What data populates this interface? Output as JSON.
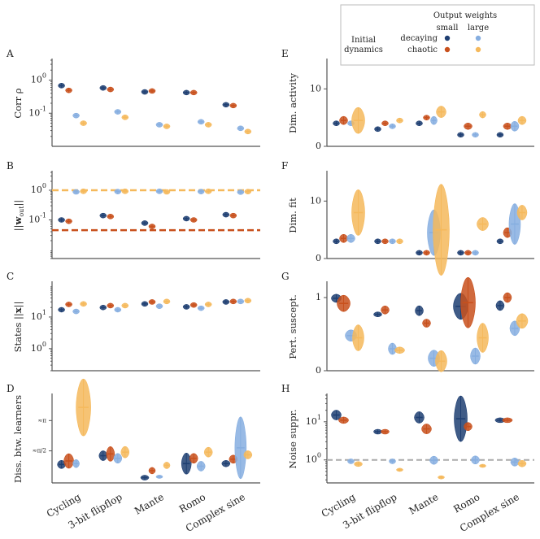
{
  "legend": {
    "title": "Output weights",
    "col_small": "small",
    "col_large": "large",
    "row_header_line1": "Initial",
    "row_header_line2": "dynamics",
    "row_decaying": "decaying",
    "row_chaotic": "chaotic"
  },
  "colors": {
    "decaying_small": "#1f3f72",
    "chaotic_small": "#c8501c",
    "decaying_large": "#86aee0",
    "chaotic_large": "#f5b95c",
    "gray_dashed": "#aaaaaa"
  },
  "chart_data": [
    {
      "type": "violin",
      "panel": "A",
      "title": "",
      "ylabel": "Corr ρ",
      "yscale": "log",
      "ylim": [
        0.01,
        4
      ],
      "yticks": [
        0.1,
        1
      ],
      "yticklabels": [
        "10^{-1}",
        "10^{0}"
      ],
      "categories": [
        "Cycling",
        "3-bit flipflop",
        "Mante",
        "Romo",
        "Complex sine"
      ],
      "series": [
        {
          "name": "decaying small",
          "values": [
            0.68,
            0.58,
            0.44,
            0.42,
            0.18
          ]
        },
        {
          "name": "chaotic small",
          "values": [
            0.49,
            0.52,
            0.47,
            0.42,
            0.17
          ]
        },
        {
          "name": "decaying large",
          "values": [
            0.085,
            0.11,
            0.045,
            0.055,
            0.035
          ]
        },
        {
          "name": "chaotic large",
          "values": [
            0.05,
            0.075,
            0.04,
            0.045,
            0.028
          ]
        }
      ]
    },
    {
      "type": "violin",
      "panel": "B",
      "ylabel": "||w_out||",
      "yscale": "log",
      "ylim": [
        0.005,
        4
      ],
      "yticks": [
        0.1,
        1
      ],
      "yticklabels": [
        "10^{-1}",
        "10^{0}"
      ],
      "reference_lines": [
        {
          "name": "large init norm",
          "value": 1.0,
          "color": "chaotic_large"
        },
        {
          "name": "small init norm",
          "value": 0.045,
          "color": "chaotic_small"
        }
      ],
      "categories": [
        "Cycling",
        "3-bit flipflop",
        "Mante",
        "Romo",
        "Complex sine"
      ],
      "series": [
        {
          "name": "decaying small",
          "values": [
            0.1,
            0.14,
            0.078,
            0.11,
            0.15
          ]
        },
        {
          "name": "chaotic small",
          "values": [
            0.09,
            0.13,
            0.06,
            0.1,
            0.14
          ]
        },
        {
          "name": "decaying large",
          "values": [
            0.88,
            0.9,
            0.92,
            0.9,
            0.86
          ]
        },
        {
          "name": "chaotic large",
          "values": [
            0.92,
            0.92,
            0.88,
            0.92,
            0.9
          ]
        }
      ]
    },
    {
      "type": "violin",
      "panel": "C",
      "ylabel": "States ||x||",
      "yscale": "log",
      "ylim": [
        0.2,
        120
      ],
      "yticks": [
        1,
        10
      ],
      "yticklabels": [
        "10^{0}",
        "10^{1}"
      ],
      "categories": [
        "Cycling",
        "3-bit flipflop",
        "Mante",
        "Romo",
        "Complex sine"
      ],
      "series": [
        {
          "name": "decaying small",
          "values": [
            17,
            20,
            26,
            21,
            30
          ]
        },
        {
          "name": "chaotic small",
          "values": [
            25,
            23,
            30,
            24,
            31
          ]
        },
        {
          "name": "decaying large",
          "values": [
            15,
            17,
            22,
            19,
            31
          ]
        },
        {
          "name": "chaotic large",
          "values": [
            26,
            23,
            31,
            25,
            33
          ]
        }
      ]
    },
    {
      "type": "violin",
      "panel": "D",
      "ylabel": "Diss. btw. learners",
      "yscale": "linear",
      "ylim": [
        0,
        1
      ],
      "ytick_marks": [
        0.365,
        0.71
      ],
      "ytick_symbols": [
        "≈π/2",
        "≈π"
      ],
      "categories": [
        "Cycling",
        "3-bit flipflop",
        "Mante",
        "Romo",
        "Complex sine"
      ],
      "series": [
        {
          "name": "decaying small",
          "values": [
            0.21,
            0.31,
            0.06,
            0.22,
            0.22
          ]
        },
        {
          "name": "chaotic small",
          "values": [
            0.25,
            0.33,
            0.14,
            0.28,
            0.27
          ]
        },
        {
          "name": "decaying large",
          "values": [
            0.22,
            0.28,
            0.07,
            0.19,
            0.4
          ]
        },
        {
          "name": "chaotic large",
          "values": [
            0.86,
            0.35,
            0.2,
            0.35,
            0.32
          ]
        }
      ]
    },
    {
      "type": "violin",
      "panel": "E",
      "ylabel": "Dim. activity",
      "yscale": "linear",
      "ylim": [
        0,
        15
      ],
      "yticks": [
        0,
        10
      ],
      "yticklabels": [
        "0",
        "10"
      ],
      "categories": [
        "Cycling",
        "3-bit flipflop",
        "Mante",
        "Romo",
        "Complex sine"
      ],
      "series": [
        {
          "name": "decaying small",
          "values": [
            4,
            3,
            4,
            2,
            2
          ]
        },
        {
          "name": "chaotic small",
          "values": [
            4.5,
            4,
            5,
            3.5,
            3.5
          ]
        },
        {
          "name": "decaying large",
          "values": [
            4,
            3.5,
            4.5,
            2,
            3.5
          ]
        },
        {
          "name": "chaotic large",
          "values": [
            4.5,
            4.5,
            6,
            5.5,
            4.5
          ]
        }
      ]
    },
    {
      "type": "violin",
      "panel": "F",
      "ylabel": "Dim. fit",
      "yscale": "linear",
      "ylim": [
        0,
        15
      ],
      "yticks": [
        0,
        10
      ],
      "yticklabels": [
        "0",
        "10"
      ],
      "categories": [
        "Cycling",
        "3-bit flipflop",
        "Mante",
        "Romo",
        "Complex sine"
      ],
      "series": [
        {
          "name": "decaying small",
          "values": [
            3,
            3,
            1,
            1,
            3
          ]
        },
        {
          "name": "chaotic small",
          "values": [
            3.5,
            3,
            1,
            1,
            4.5
          ]
        },
        {
          "name": "decaying large",
          "values": [
            3.5,
            3,
            4.5,
            1,
            6
          ]
        },
        {
          "name": "chaotic large",
          "values": [
            8,
            3,
            5,
            6,
            8
          ]
        }
      ]
    },
    {
      "type": "violin",
      "panel": "G",
      "ylabel": "Pert. suscept.",
      "yscale": "linear",
      "ylim": [
        0,
        1.2
      ],
      "yticks": [
        0,
        1
      ],
      "yticklabels": [
        "0",
        "1"
      ],
      "categories": [
        "Cycling",
        "3-bit flipflop",
        "Mante",
        "Romo",
        "Complex sine"
      ],
      "series": [
        {
          "name": "decaying small",
          "values": [
            0.99,
            0.77,
            0.82,
            0.88,
            0.89
          ]
        },
        {
          "name": "chaotic small",
          "values": [
            0.92,
            0.83,
            0.65,
            0.93,
            1.0
          ]
        },
        {
          "name": "decaying large",
          "values": [
            0.48,
            0.3,
            0.17,
            0.2,
            0.58
          ]
        },
        {
          "name": "chaotic large",
          "values": [
            0.45,
            0.28,
            0.13,
            0.45,
            0.68
          ]
        }
      ]
    },
    {
      "type": "violin",
      "panel": "H",
      "ylabel": "Noise suppr.",
      "yscale": "log",
      "ylim": [
        0.25,
        50
      ],
      "yticks": [
        1,
        10
      ],
      "yticklabels": [
        "10^{0}",
        "10^{1}"
      ],
      "reference_lines": [
        {
          "name": "no suppression",
          "value": 1.0,
          "color": "gray_dashed"
        }
      ],
      "categories": [
        "Cycling",
        "3-bit flipflop",
        "Mante",
        "Romo",
        "Complex sine"
      ],
      "series": [
        {
          "name": "decaying small",
          "values": [
            15,
            5.5,
            13,
            12,
            11
          ]
        },
        {
          "name": "chaotic small",
          "values": [
            11,
            5.5,
            6.5,
            7.5,
            11
          ]
        },
        {
          "name": "decaying large",
          "values": [
            0.92,
            0.92,
            0.98,
            1.0,
            0.88
          ]
        },
        {
          "name": "chaotic large",
          "values": [
            0.78,
            0.55,
            0.35,
            0.7,
            0.8
          ]
        }
      ]
    }
  ]
}
